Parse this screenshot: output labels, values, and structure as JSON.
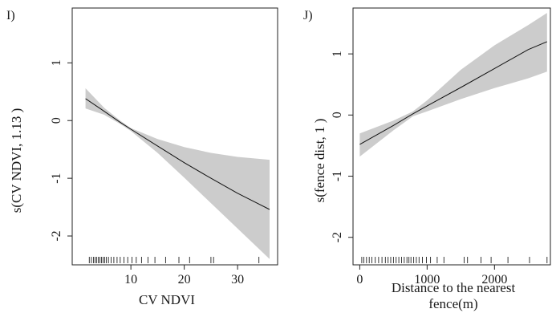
{
  "chart_data": [
    {
      "type": "line",
      "panel_label": "I)",
      "xlabel": "CV NDVI",
      "ylabel": "s(CV NDVI,  1.13 )",
      "xlim": [
        -1,
        37.5
      ],
      "ylim": [
        -2.5,
        1.95
      ],
      "xticks": [
        10,
        20,
        30
      ],
      "xtick_labels": [
        "10",
        "20",
        "30"
      ],
      "yticks": [
        -2,
        -1,
        0,
        1
      ],
      "ytick_labels": [
        "-2",
        "-1",
        "0",
        "1"
      ],
      "x": [
        1.5,
        5,
        8,
        10,
        15,
        20,
        25,
        30,
        36
      ],
      "y": [
        0.38,
        0.16,
        -0.03,
        -0.15,
        -0.44,
        -0.73,
        -1.0,
        -1.26,
        -1.54
      ],
      "ci_upper": [
        0.56,
        0.22,
        0.0,
        -0.13,
        -0.32,
        -0.46,
        -0.56,
        -0.63,
        -0.68
      ],
      "ci_lower": [
        0.21,
        0.1,
        -0.06,
        -0.18,
        -0.56,
        -0.99,
        -1.43,
        -1.87,
        -2.4
      ],
      "ci_fill": "#cccccc",
      "rug": [
        2.2,
        2.6,
        3.0,
        3.3,
        3.6,
        3.9,
        4.2,
        4.5,
        4.8,
        5.1,
        5.4,
        5.8,
        6.3,
        6.8,
        7.4,
        8.0,
        8.7,
        9.4,
        10.2,
        11.0,
        12.0,
        13.2,
        14.5,
        16.5,
        19.0,
        21.0,
        25.0,
        25.5,
        34.0
      ],
      "grid": false
    },
    {
      "type": "line",
      "panel_label": "J)",
      "xlabel": "Distance to the nearest fence(m)",
      "xlabel_lines": [
        "Distance to the nearest",
        "fence(m)"
      ],
      "ylabel": "s(fence dist,  1 )",
      "xlim": [
        -100,
        2830
      ],
      "ylim": [
        -2.45,
        1.75
      ],
      "xticks": [
        0,
        1000,
        2000
      ],
      "xtick_labels": [
        "0",
        "1000",
        "2000"
      ],
      "yticks": [
        -2,
        -1,
        0,
        1
      ],
      "ytick_labels": [
        "-2",
        "-1",
        "0",
        "1"
      ],
      "x": [
        0,
        500,
        790,
        1000,
        1500,
        2000,
        2500,
        2780
      ],
      "y": [
        -0.48,
        -0.17,
        0.02,
        0.15,
        0.45,
        0.76,
        1.07,
        1.2
      ],
      "ci_upper": [
        -0.3,
        -0.09,
        0.06,
        0.24,
        0.74,
        1.14,
        1.47,
        1.67
      ],
      "ci_lower": [
        -0.68,
        -0.25,
        -0.02,
        0.06,
        0.26,
        0.44,
        0.6,
        0.71
      ],
      "ci_fill": "#cccccc",
      "rug": [
        30,
        60,
        100,
        140,
        180,
        230,
        280,
        330,
        380,
        420,
        460,
        500,
        540,
        580,
        620,
        660,
        700,
        730,
        760,
        800,
        840,
        880,
        930,
        990,
        1050,
        1150,
        1250,
        1550,
        1600,
        1800,
        1950,
        2200,
        2520,
        2780
      ],
      "grid": false
    }
  ]
}
